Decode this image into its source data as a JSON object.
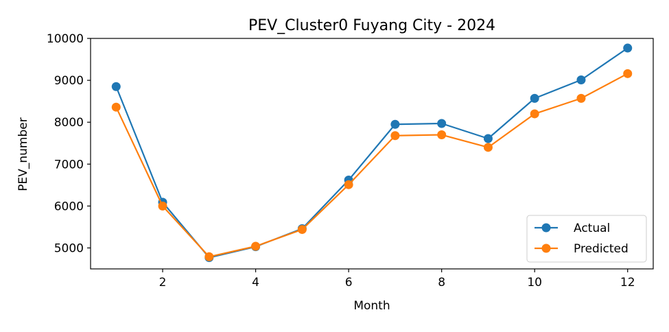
{
  "chart_data": {
    "type": "line",
    "title": "PEV_Cluster0 Fuyang City - 2024",
    "xlabel": "Month",
    "ylabel": "PEV_number",
    "x": [
      1,
      2,
      3,
      4,
      5,
      6,
      7,
      8,
      9,
      10,
      11,
      12
    ],
    "xlim": [
      0.45,
      12.55
    ],
    "ylim": [
      4500,
      10000
    ],
    "xticks": [
      2,
      4,
      6,
      8,
      10,
      12
    ],
    "yticks": [
      5000,
      6000,
      7000,
      8000,
      9000,
      10000
    ],
    "grid": false,
    "legend_position": "lower-right",
    "series": [
      {
        "name": "Actual",
        "color": "#1f77b4",
        "marker": "circle",
        "values": [
          8850,
          6090,
          4770,
          5030,
          5460,
          6620,
          7950,
          7970,
          7610,
          8570,
          9010,
          9770
        ]
      },
      {
        "name": "Predicted",
        "color": "#ff7f0e",
        "marker": "circle",
        "values": [
          8360,
          6000,
          4790,
          5040,
          5440,
          6510,
          7680,
          7700,
          7400,
          8200,
          8570,
          9160
        ]
      }
    ]
  }
}
